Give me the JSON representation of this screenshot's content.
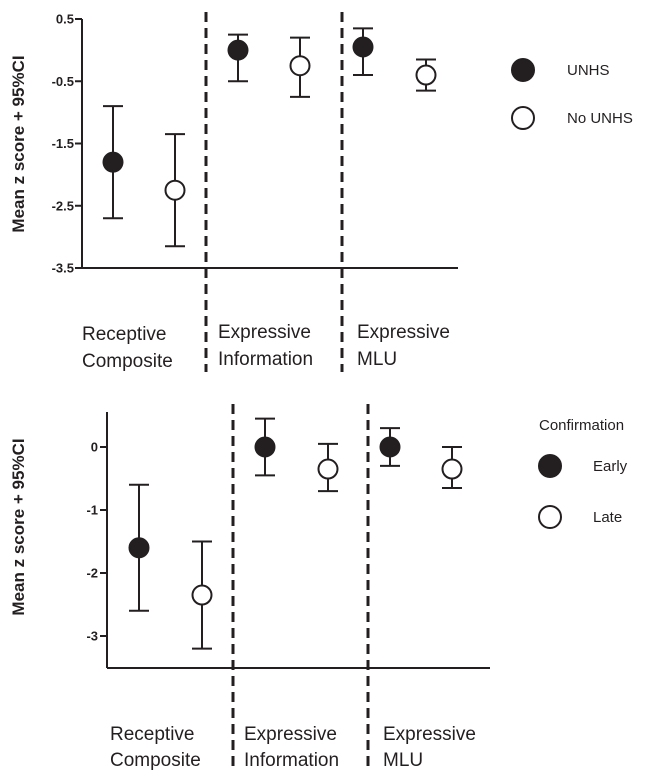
{
  "chart_data": [
    {
      "type": "scatter",
      "ylabel": "Mean z score + 95%CI",
      "ylim": [
        -3.5,
        0.5
      ],
      "yticks": [
        0.5,
        -0.5,
        -1.5,
        -2.5,
        -3.5
      ],
      "ytick_labels": [
        "0.5",
        "-0.5",
        "-1.5",
        "-2.5",
        "-3.5"
      ],
      "categories": [
        {
          "line1": "Receptive",
          "line2": "Composite"
        },
        {
          "line1": "Expressive",
          "line2": "Information"
        },
        {
          "line1": "Expressive",
          "line2": "MLU"
        }
      ],
      "legend": {
        "title": "",
        "position": "right"
      },
      "series": [
        {
          "name": "UNHS",
          "fill": "#231f20",
          "points": [
            {
              "category": 0,
              "y": -1.8,
              "low": -2.7,
              "high": -0.9
            },
            {
              "category": 1,
              "y": 0.0,
              "low": -0.5,
              "high": 0.25
            },
            {
              "category": 2,
              "y": 0.05,
              "low": -0.4,
              "high": 0.35
            }
          ]
        },
        {
          "name": "No UNHS",
          "fill": "#ffffff",
          "points": [
            {
              "category": 0,
              "y": -2.25,
              "low": -3.15,
              "high": -1.35
            },
            {
              "category": 1,
              "y": -0.25,
              "low": -0.75,
              "high": 0.2
            },
            {
              "category": 2,
              "y": -0.4,
              "low": -0.65,
              "high": -0.15
            }
          ]
        }
      ]
    },
    {
      "type": "scatter",
      "ylabel": "Mean z score + 95%CI",
      "ylim": [
        -3.5,
        0.5
      ],
      "yticks": [
        0,
        -1,
        -2,
        -3
      ],
      "ytick_labels": [
        "0",
        "-1",
        "-2",
        "-3"
      ],
      "categories": [
        {
          "line1": "Receptive",
          "line2": "Composite"
        },
        {
          "line1": "Expressive",
          "line2": "Information"
        },
        {
          "line1": "Expressive",
          "line2": "MLU"
        }
      ],
      "legend": {
        "title": "Confirmation",
        "position": "right"
      },
      "series": [
        {
          "name": "Early",
          "fill": "#231f20",
          "points": [
            {
              "category": 0,
              "y": -1.6,
              "low": -2.6,
              "high": -0.6
            },
            {
              "category": 1,
              "y": 0.0,
              "low": -0.45,
              "high": 0.45
            },
            {
              "category": 2,
              "y": 0.0,
              "low": -0.3,
              "high": 0.3
            }
          ]
        },
        {
          "name": "Late",
          "fill": "#ffffff",
          "points": [
            {
              "category": 0,
              "y": -2.35,
              "low": -3.2,
              "high": -1.5
            },
            {
              "category": 1,
              "y": -0.35,
              "low": -0.7,
              "high": 0.05
            },
            {
              "category": 2,
              "y": -0.35,
              "low": -0.65,
              "high": 0.0
            }
          ]
        }
      ]
    }
  ]
}
